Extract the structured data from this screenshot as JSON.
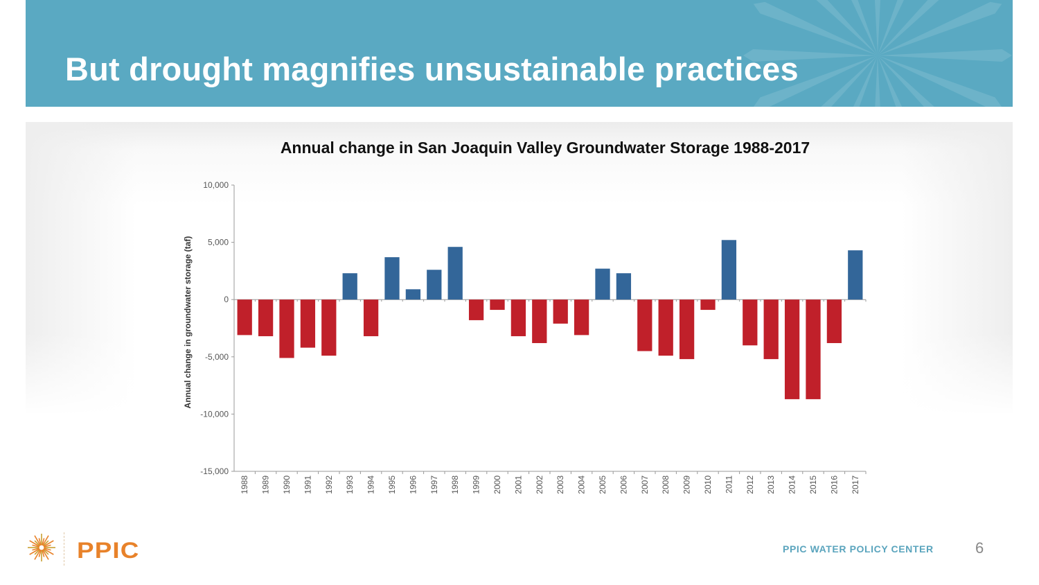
{
  "slide": {
    "title": "But drought magnifies unsustainable practices",
    "page_number": "6",
    "footer_brand": "PPIC",
    "footer_center": "PPIC WATER POLICY CENTER",
    "colors": {
      "header_bg": "#5aa9c2",
      "positive_bar": "#336699",
      "negative_bar": "#c0202a",
      "brand_orange": "#e8822a",
      "footer_text": "#5aa4bd"
    }
  },
  "chart_data": {
    "type": "bar",
    "title": "Annual change in San Joaquin Valley Groundwater Storage 1988-2017",
    "xlabel": "",
    "ylabel": "Annual change in groundwater storage (taf)",
    "ylim": [
      -15000,
      10000
    ],
    "yticks": [
      10000,
      5000,
      0,
      -5000,
      -10000,
      -15000
    ],
    "ytick_labels": [
      "10,000",
      "5,000",
      "0",
      "-5,000",
      "-10,000",
      "-15,000"
    ],
    "grid": false,
    "legend": "none",
    "categories": [
      "1988",
      "1989",
      "1990",
      "1991",
      "1992",
      "1993",
      "1994",
      "1995",
      "1996",
      "1997",
      "1998",
      "1999",
      "2000",
      "2001",
      "2002",
      "2003",
      "2004",
      "2005",
      "2006",
      "2007",
      "2008",
      "2009",
      "2010",
      "2011",
      "2012",
      "2013",
      "2014",
      "2015",
      "2016",
      "2017"
    ],
    "values": [
      -3100,
      -3200,
      -5100,
      -4200,
      -4900,
      2300,
      -3200,
      3700,
      900,
      2600,
      4600,
      -1800,
      -900,
      -3200,
      -3800,
      -2100,
      -3100,
      2700,
      2300,
      -4500,
      -4900,
      -5200,
      -900,
      5200,
      -4000,
      -5200,
      -8700,
      -8700,
      -3800,
      4300
    ]
  }
}
